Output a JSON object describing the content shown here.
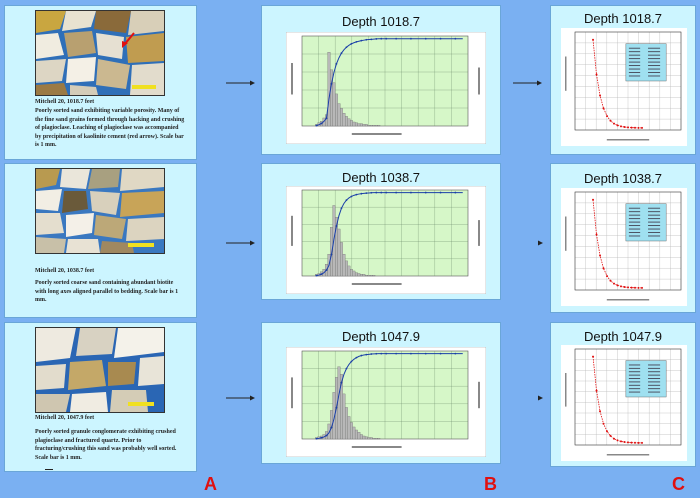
{
  "rows": [
    {
      "caption_title": "Mitchell 20, 1018.7 feet",
      "caption_body": "Poorly sorted sand exhibiting variable porosity. Many of the fine sand grains formed through hacking and crushing of plagioclase. Leaching of plagioclase was accompanied by precipitation of kaolinite cement (red arrow). Scale bar is 1 mm.",
      "chart_b_title": "Depth 1018.7",
      "chart_c_title": "Depth 1018.7"
    },
    {
      "caption_title": "Mitchell 20, 1038.7 feet",
      "caption_body": "Poorly sorted coarse sand containing abundant biotite with long axes aligned parallel to bedding. Scale bar is 1 mm.",
      "chart_b_title": "Depth 1038.7",
      "chart_c_title": "Depth 1038.7"
    },
    {
      "caption_title": "Mitchell 20, 1047.9 feet",
      "caption_body": "Poorly sorted granule conglomerate exhibiting crushed plagioclase and fractured quartz. Prior to fracturing/crushing this sand was probably well sorted. Scale bar is 1 mm.",
      "chart_b_title": "Depth 1047.9",
      "chart_c_title": "Depth 1047.9"
    }
  ],
  "column_labels": {
    "a": "A",
    "b": "B",
    "c": "C"
  },
  "colors": {
    "background": "#7ab0f2",
    "panel": "#ccf5ff",
    "plot_area": "#d6f7c8",
    "bar": "#b8b8b8",
    "curve": "#1a3fa8",
    "red": "#e01010"
  }
}
